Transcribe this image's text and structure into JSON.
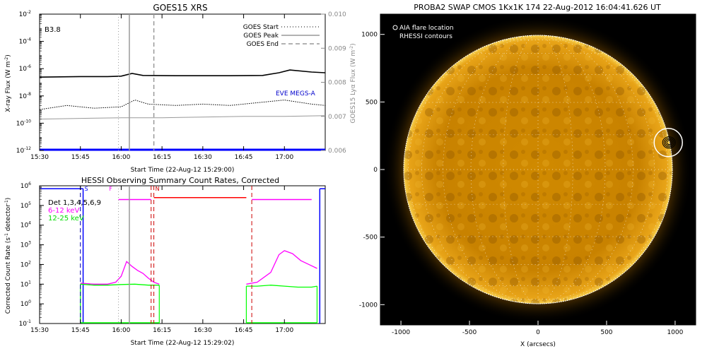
{
  "chart_data": [
    {
      "type": "line",
      "title": "GOES15 XRS",
      "xlabel": "Start Time (22-Aug-12 15:29:00)",
      "ylabel": "X-ray Flux (W m",
      "ylabel_sup": "-2",
      "ylabel_close": ")",
      "y2label": "GOES15 Lyα Flux (W m",
      "y2label_sup": "-2",
      "y2label_close": ")",
      "class_label": "B3.8",
      "eve_label": "EVE MEGS-A",
      "x_range": [
        "15:30",
        "17:15"
      ],
      "x_ticks": [
        "15:30",
        "15:45",
        "16:00",
        "16:15",
        "16:30",
        "16:45",
        "17:00"
      ],
      "y_log": true,
      "y_range_exp": [
        -12,
        -2
      ],
      "y_ticks": [
        {
          "base": "10",
          "exp": "-2"
        },
        {
          "base": "10",
          "exp": "-4"
        },
        {
          "base": "10",
          "exp": "-6"
        },
        {
          "base": "10",
          "exp": "-8"
        },
        {
          "base": "10",
          "exp": "-10"
        },
        {
          "base": "10",
          "exp": "-12"
        }
      ],
      "y2_range": [
        0.006,
        0.01
      ],
      "y2_ticks": [
        "0.010",
        "0.009",
        "0.008",
        "0.007",
        "0.006"
      ],
      "legend": [
        {
          "name": "GOES Start",
          "style": "dotted"
        },
        {
          "name": "GOES Peak",
          "style": "solid"
        },
        {
          "name": "GOES End",
          "style": "dashed"
        }
      ],
      "event_lines": {
        "start": "15:59",
        "peak": "16:03",
        "end": "16:12"
      },
      "series": [
        {
          "name": "GOES long channel",
          "color": "#000000",
          "t": [
            "15:30",
            "15:45",
            "15:55",
            "16:00",
            "16:04",
            "16:08",
            "16:20",
            "16:40",
            "16:52",
            "16:58",
            "17:02",
            "17:10",
            "17:15"
          ],
          "log_flux": [
            -6.62,
            -6.58,
            -6.58,
            -6.55,
            -6.35,
            -6.5,
            -6.52,
            -6.52,
            -6.5,
            -6.3,
            -6.1,
            -6.25,
            -6.3
          ]
        },
        {
          "name": "GOES short channel",
          "color": "#000000",
          "style": "dotted",
          "t": [
            "15:30",
            "15:40",
            "15:50",
            "16:00",
            "16:05",
            "16:10",
            "16:20",
            "16:30",
            "16:40",
            "16:50",
            "17:00",
            "17:10",
            "17:15"
          ],
          "log_flux": [
            -9.0,
            -8.7,
            -8.9,
            -8.8,
            -8.3,
            -8.6,
            -8.7,
            -8.6,
            -8.7,
            -8.5,
            -8.3,
            -8.6,
            -8.7
          ]
        },
        {
          "name": "GOES Lyα",
          "color": "#999999",
          "t": [
            "15:30",
            "15:45",
            "16:00",
            "16:15",
            "16:30",
            "16:45",
            "17:00",
            "17:15"
          ],
          "log_flux": [
            -9.7,
            -9.65,
            -9.6,
            -9.6,
            -9.55,
            -9.5,
            -9.5,
            -9.45
          ]
        },
        {
          "name": "EVE MEGS-A",
          "color": "#0000ff",
          "t": [
            "15:30",
            "17:15"
          ],
          "log_flux": [
            -11.95,
            -11.95
          ]
        }
      ]
    },
    {
      "type": "line",
      "title": "HESSI Observing Summary Count Rates, Corrected",
      "xlabel": "Start Time (22-Aug-12 15:29:02)",
      "ylabel": "Corrected Count Rate (s",
      "ylabel_sup": "-1",
      "ylabel_mid": " detector",
      "ylabel_sup2": "-1",
      "ylabel_close": ")",
      "x_range": [
        "15:30",
        "17:15"
      ],
      "x_ticks": [
        "15:30",
        "15:45",
        "16:00",
        "16:15",
        "16:30",
        "16:45",
        "17:00"
      ],
      "y_log": true,
      "y_range_exp": [
        -1,
        6
      ],
      "y_ticks": [
        {
          "base": "10",
          "exp": "6"
        },
        {
          "base": "10",
          "exp": "5"
        },
        {
          "base": "10",
          "exp": "4"
        },
        {
          "base": "10",
          "exp": "3"
        },
        {
          "base": "10",
          "exp": "2"
        },
        {
          "base": "10",
          "exp": "1"
        },
        {
          "base": "10",
          "exp": "0"
        },
        {
          "base": "10",
          "exp": "-1"
        }
      ],
      "detectors": "Det 1,3,4,5,6,9",
      "legend": [
        {
          "name": "6-12 keV",
          "color": "#ff00ff"
        },
        {
          "name": "12-25 keV",
          "color": "#00ff00"
        }
      ],
      "flag_labels": [
        {
          "text": "S",
          "color": "#0000ff",
          "t": "15:46"
        },
        {
          "text": "F",
          "color": "#ff00ff",
          "t": "15:55"
        },
        {
          "text": "N",
          "color": "#cc0000",
          "t": "16:12"
        }
      ],
      "series": [
        {
          "name": "6-12 keV",
          "color": "#ff00ff",
          "segments": [
            {
              "t": [
                "15:45",
                "15:50",
                "15:55",
                "15:58",
                "16:00",
                "16:02",
                "16:04",
                "16:06",
                "16:08",
                "16:10",
                "16:12",
                "16:14"
              ],
              "log_rate": [
                1.05,
                1.0,
                1.0,
                1.1,
                1.4,
                2.15,
                1.9,
                1.7,
                1.55,
                1.3,
                1.1,
                1.0
              ]
            },
            {
              "t": [
                "16:46",
                "16:50",
                "16:55",
                "16:58",
                "17:00",
                "17:03",
                "17:06",
                "17:09",
                "17:12"
              ],
              "log_rate": [
                1.0,
                1.1,
                1.6,
                2.5,
                2.7,
                2.55,
                2.2,
                2.0,
                1.8
              ]
            }
          ]
        },
        {
          "name": "12-25 keV",
          "color": "#00ff00",
          "segments": [
            {
              "t": [
                "15:45",
                "15:50",
                "15:55",
                "16:00",
                "16:05",
                "16:10",
                "16:14"
              ],
              "log_rate": [
                1.0,
                0.95,
                0.95,
                0.98,
                1.0,
                0.95,
                0.95
              ]
            },
            {
              "t": [
                "16:46",
                "16:50",
                "16:55",
                "17:00",
                "17:05",
                "17:10",
                "17:12"
              ],
              "log_rate": [
                0.9,
                0.9,
                0.95,
                0.9,
                0.85,
                0.85,
                0.9
              ]
            }
          ]
        }
      ]
    },
    {
      "type": "image",
      "title": "PROBA2 SWAP CMOS 1Kx1K 174 22-Aug-2012 16:04:41.626 UT",
      "xlabel": "X (arcsecs)",
      "x_range": [
        -1150,
        1150
      ],
      "y_range": [
        -1150,
        1150
      ],
      "x_ticks": [
        "-1000",
        "-500",
        "0",
        "500",
        "1000"
      ],
      "y_ticks": [
        "1000",
        "500",
        "0",
        "-500",
        "-1000"
      ],
      "legend": [
        {
          "name": "AIA flare location",
          "color": "#ffffff"
        },
        {
          "name": "RHESSI contours",
          "color": "#000000"
        }
      ],
      "flare_location": {
        "x": 950,
        "y": 200
      }
    }
  ]
}
